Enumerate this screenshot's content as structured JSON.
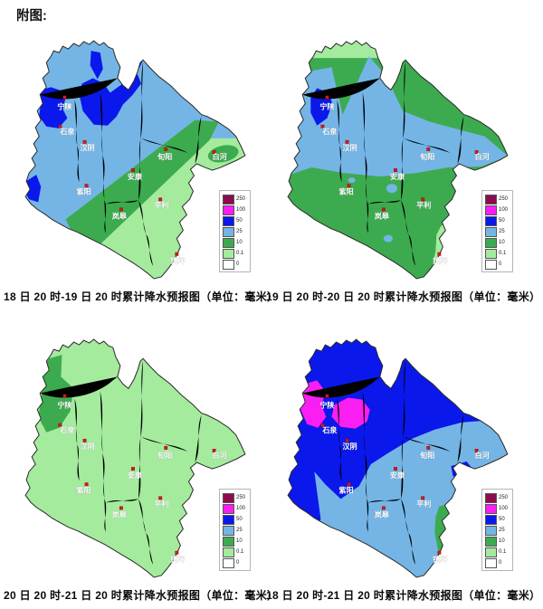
{
  "figure_label": "附图:",
  "legend": {
    "values": [
      "250",
      "100",
      "50",
      "25",
      "10",
      "0.1",
      "0"
    ],
    "colors": [
      "#8e0b4e",
      "#fb1ef2",
      "#0a18ec",
      "#74b5e6",
      "#3cab4f",
      "#a4eb9e",
      "#ffffff"
    ],
    "unit": "毫米"
  },
  "marker_color": "#e21414",
  "cities": [
    "宁陕",
    "石泉",
    "汉阴",
    "紫阳",
    "安康",
    "岚皋",
    "平利",
    "旬阳",
    "白河",
    "镇坪"
  ],
  "panels": [
    {
      "caption": "18 日 20 时-19 日 20 时累计降水预报图（单位：毫米）"
    },
    {
      "caption": "19 日 20 时-20 日 20 时累计降水预报图（单位：毫米）"
    },
    {
      "caption": "20 日 20 时-21 日 20 时累计降水预报图（单位：毫米）"
    },
    {
      "caption": "18 日 20 时-21 日 20 时累计降水预报图（单位：毫米）"
    }
  ]
}
